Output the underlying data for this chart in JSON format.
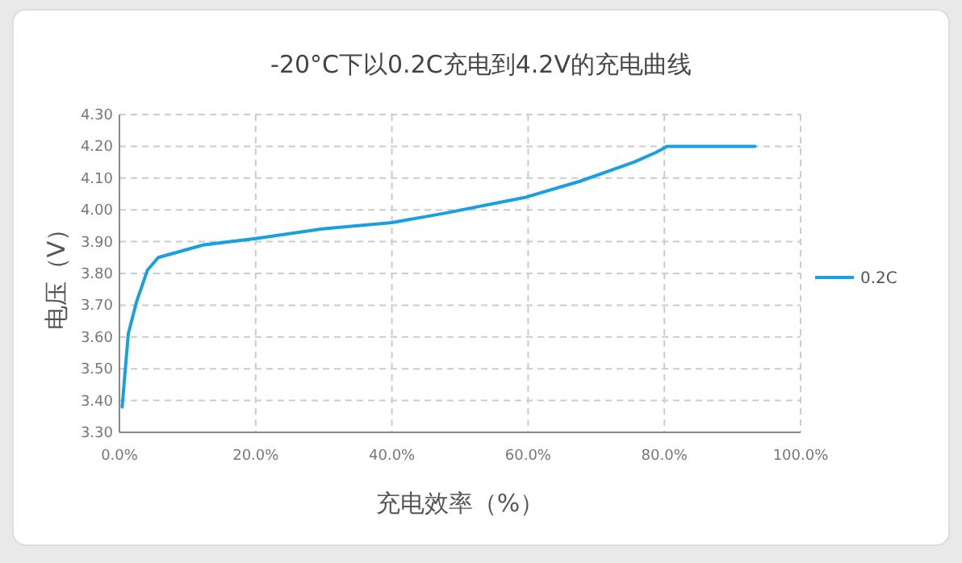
{
  "chart_data": {
    "type": "line",
    "title": "-20°C下以0.2C充电到4.2V的充电曲线",
    "xlabel": "充电效率（%）",
    "ylabel": "电压（V）",
    "x": [
      0.4,
      1.3,
      2.5,
      4.1,
      5.7,
      12.4,
      20.0,
      29.8,
      40.0,
      47.9,
      59.7,
      67.6,
      75.5,
      78.7,
      80.4,
      93.3
    ],
    "series": [
      {
        "name": "0.2C",
        "color": "#1a9fe0",
        "values": [
          3.38,
          3.61,
          3.71,
          3.81,
          3.85,
          3.89,
          3.91,
          3.94,
          3.96,
          3.99,
          4.04,
          4.09,
          4.15,
          4.18,
          4.2,
          4.2
        ]
      }
    ],
    "xlim": [
      0,
      100
    ],
    "xticks": [
      {
        "value": 0,
        "label": "0.0%"
      },
      {
        "value": 20,
        "label": "20.0%"
      },
      {
        "value": 40,
        "label": "40.0%"
      },
      {
        "value": 60,
        "label": "60.0%"
      },
      {
        "value": 80,
        "label": "80.0%"
      },
      {
        "value": 100,
        "label": "100.0%"
      }
    ],
    "ylim": [
      3.3,
      4.3
    ],
    "yticks": [
      {
        "value": 3.3,
        "label": "3.30"
      },
      {
        "value": 3.4,
        "label": "3.40"
      },
      {
        "value": 3.5,
        "label": "3.50"
      },
      {
        "value": 3.6,
        "label": "3.60"
      },
      {
        "value": 3.7,
        "label": "3.70"
      },
      {
        "value": 3.8,
        "label": "3.80"
      },
      {
        "value": 3.9,
        "label": "3.90"
      },
      {
        "value": 4.0,
        "label": "4.00"
      },
      {
        "value": 4.1,
        "label": "4.10"
      },
      {
        "value": 4.2,
        "label": "4.20"
      },
      {
        "value": 4.3,
        "label": "4.30"
      }
    ],
    "grid": true,
    "legend": "right",
    "marker": "none",
    "line_style": "solid"
  }
}
